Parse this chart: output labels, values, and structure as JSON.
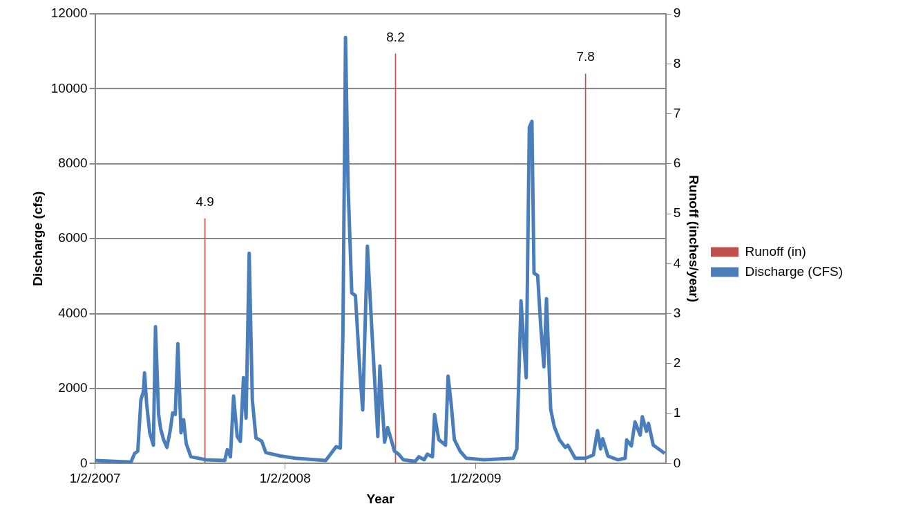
{
  "chart_data": {
    "type": "line",
    "xlabel": "Year",
    "ylabel": "Discharge (cfs)",
    "y2label": "Runoff (inches/year)",
    "xlim": [
      "2007-01-02",
      "2010-01-02"
    ],
    "xticks": [
      {
        "value": "2007-01-02",
        "label": "1/2/2007"
      },
      {
        "value": "2008-01-02",
        "label": "1/2/2008"
      },
      {
        "value": "2009-01-02",
        "label": "1/2/2009"
      }
    ],
    "ylim": [
      0,
      12000
    ],
    "yticks": [
      0,
      2000,
      4000,
      6000,
      8000,
      10000,
      12000
    ],
    "y2lim": [
      0,
      9
    ],
    "y2ticks": [
      0,
      1,
      2,
      3,
      4,
      5,
      6,
      7,
      8,
      9
    ],
    "grid": "y",
    "legend": "right",
    "marker": "none",
    "series": [
      {
        "type": "bar",
        "name": "Runoff (in)",
        "color": "#c0504d",
        "axis": "y2",
        "x": [
          "2007-08-01",
          "2008-08-01",
          "2009-08-01"
        ],
        "values": [
          4.9,
          8.2,
          7.8
        ],
        "value_labels": [
          "4.9",
          "8.2",
          "7.8"
        ]
      },
      {
        "name": "Discharge (CFS)",
        "color": "#4a7ebb",
        "x": [
          "2007-01-02",
          "2007-03-12",
          "2007-03-19",
          "2007-03-25",
          "2007-03-31",
          "2007-04-05",
          "2007-04-07",
          "2007-04-11",
          "2007-04-17",
          "2007-04-24",
          "2007-04-28",
          "2007-05-04",
          "2007-05-08",
          "2007-05-14",
          "2007-05-20",
          "2007-05-26",
          "2007-05-31",
          "2007-06-05",
          "2007-06-10",
          "2007-06-16",
          "2007-06-21",
          "2007-06-26",
          "2007-07-05",
          "2007-08-03",
          "2007-09-08",
          "2007-09-13",
          "2007-09-19",
          "2007-09-25",
          "2007-10-02",
          "2007-10-08",
          "2007-10-14",
          "2007-10-19",
          "2007-10-25",
          "2007-10-31",
          "2007-11-07",
          "2007-11-18",
          "2007-11-26",
          "2007-12-24",
          "2008-01-22",
          "2008-03-20",
          "2008-04-09",
          "2008-04-17",
          "2008-04-22",
          "2008-04-27",
          "2008-05-02",
          "2008-05-09",
          "2008-05-16",
          "2008-05-25",
          "2008-05-30",
          "2008-06-08",
          "2008-06-17",
          "2008-06-28",
          "2008-07-02",
          "2008-07-11",
          "2008-07-17",
          "2008-07-30",
          "2008-08-07",
          "2008-08-16",
          "2008-09-08",
          "2008-09-15",
          "2008-09-25",
          "2008-10-01",
          "2008-10-11",
          "2008-10-15",
          "2008-10-23",
          "2008-11-05",
          "2008-11-10",
          "2008-11-16",
          "2008-11-22",
          "2008-12-03",
          "2008-12-15",
          "2009-01-18",
          "2009-03-15",
          "2009-03-22",
          "2009-03-30",
          "2009-04-09",
          "2009-04-15",
          "2009-04-20",
          "2009-04-24",
          "2009-05-01",
          "2009-05-07",
          "2009-05-13",
          "2009-05-18",
          "2009-05-26",
          "2009-06-02",
          "2009-06-12",
          "2009-06-23",
          "2009-06-28",
          "2009-07-12",
          "2009-08-01",
          "2009-08-16",
          "2009-08-24",
          "2009-08-30",
          "2009-09-03",
          "2009-09-13",
          "2009-10-02",
          "2009-10-16",
          "2009-10-19",
          "2009-10-28",
          "2009-11-04",
          "2009-11-14",
          "2009-11-18",
          "2009-11-26",
          "2009-11-30",
          "2009-12-09",
          "2009-12-31"
        ],
        "values": [
          80,
          40,
          270,
          330,
          1700,
          1930,
          2420,
          1600,
          820,
          490,
          3650,
          1310,
          920,
          620,
          430,
          860,
          1350,
          1310,
          3200,
          820,
          1170,
          530,
          180,
          100,
          80,
          370,
          180,
          1800,
          720,
          590,
          2290,
          1210,
          5610,
          1700,
          680,
          600,
          290,
          200,
          140,
          80,
          450,
          410,
          3460,
          11370,
          7370,
          4550,
          4480,
          2360,
          1430,
          5800,
          3460,
          720,
          2600,
          570,
          960,
          330,
          250,
          100,
          60,
          180,
          100,
          250,
          180,
          1310,
          640,
          490,
          2330,
          1580,
          640,
          330,
          140,
          100,
          140,
          390,
          4340,
          2290,
          8970,
          9130,
          5080,
          5020,
          3650,
          2580,
          4400,
          1450,
          980,
          630,
          430,
          490,
          140,
          140,
          230,
          880,
          390,
          660,
          200,
          100,
          140,
          630,
          470,
          1110,
          760,
          1250,
          860,
          1070,
          490,
          270
        ]
      }
    ]
  }
}
